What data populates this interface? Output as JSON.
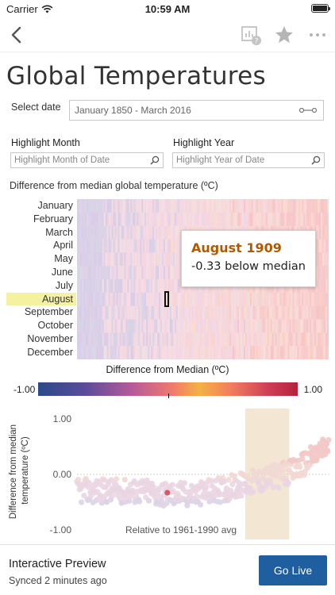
{
  "status_bar": {
    "carrier": "Carrier",
    "time": "10:59 AM"
  },
  "nav": {
    "icons": [
      "back-chevron-icon",
      "chart-info-icon",
      "star-icon",
      "more-icon"
    ]
  },
  "page": {
    "title": "Global Temperatures"
  },
  "filters": {
    "select_date_label": "Select date",
    "date_range": "January 1850 - March 2016",
    "highlight_month_label": "Highlight Month",
    "highlight_month_placeholder": "Highlight Month of Date",
    "highlight_year_label": "Highlight Year",
    "highlight_year_placeholder": "Highlight Year of Date"
  },
  "heatmap": {
    "title": "Difference from median global temperature (ºC)",
    "months": [
      "January",
      "February",
      "March",
      "April",
      "May",
      "June",
      "July",
      "August",
      "September",
      "October",
      "November",
      "December"
    ],
    "highlighted_month": "August"
  },
  "tooltip": {
    "title": "August 1909",
    "value": "-0.33 below median"
  },
  "legend": {
    "title": "Difference from Median (ºC)",
    "min": "-1.00",
    "max": "1.00"
  },
  "chart_data": {
    "type": "scatter",
    "ylabel": "Difference from median temperature (ºC)",
    "y_ticks": [
      "1.00",
      "0.00",
      "-1.00"
    ],
    "ylim": [
      -1.0,
      1.0
    ],
    "xlim": [
      1850,
      2016
    ],
    "annotation": "Relative to 1961-1990 avg",
    "shaded_band": [
      1961,
      1990
    ],
    "highlight_point": {
      "x": 1909.6,
      "y": -0.33,
      "label": "August 1909"
    }
  },
  "footer": {
    "title": "Interactive Preview",
    "subtitle": "Synced 2 minutes ago",
    "go_live_label": "Go Live"
  }
}
